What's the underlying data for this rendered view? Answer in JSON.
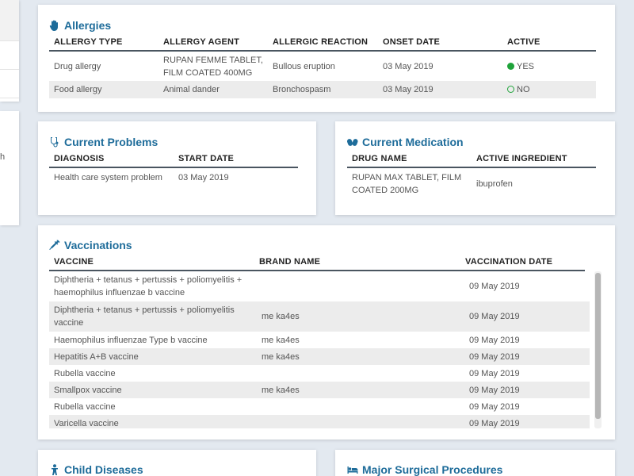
{
  "left_partial": {
    "mid_fragment": "h"
  },
  "allergies": {
    "title": "Allergies",
    "columns": [
      "ALLERGY TYPE",
      "ALLERGY AGENT",
      "ALLERGIC REACTION",
      "ONSET DATE",
      "ACTIVE"
    ],
    "rows": [
      {
        "type": "Drug allergy",
        "agent_line1": "RUPAN FEMME TABLET,",
        "agent_line2": "FILM COATED 400MG",
        "reaction": "Bullous eruption",
        "onset": "03 May 2019",
        "active": "YES"
      },
      {
        "type": "Food allergy",
        "agent_line1": "Animal dander",
        "agent_line2": "",
        "reaction": "Bronchospasm",
        "onset": "03 May 2019",
        "active": "NO"
      }
    ]
  },
  "problems": {
    "title": "Current Problems",
    "columns": [
      "DIAGNOSIS",
      "START DATE"
    ],
    "rows": [
      {
        "diagnosis": "Health care system problem",
        "start": "03 May 2019"
      }
    ]
  },
  "medication": {
    "title": "Current Medication",
    "columns": [
      "DRUG NAME",
      "ACTIVE INGREDIENT"
    ],
    "rows": [
      {
        "drug_line1": "RUPAN MAX TABLET, FILM",
        "drug_line2": "COATED 200MG",
        "ingredient": "ibuprofen"
      }
    ]
  },
  "vaccinations": {
    "title": "Vaccinations",
    "columns": [
      "VACCINE",
      "BRAND NAME",
      "VACCINATION DATE"
    ],
    "rows": [
      {
        "vaccine_line1": "Diphtheria + tetanus + pertussis + poliomyelitis +",
        "vaccine_line2": "haemophilus influenzae b vaccine",
        "brand": "",
        "date": "09 May 2019"
      },
      {
        "vaccine_line1": "Diphtheria + tetanus + pertussis + poliomyelitis",
        "vaccine_line2": "vaccine",
        "brand": "me ka4es",
        "date": "09 May 2019"
      },
      {
        "vaccine_line1": "Haemophilus influenzae Type b vaccine",
        "vaccine_line2": "",
        "brand": "me ka4es",
        "date": "09 May 2019"
      },
      {
        "vaccine_line1": "Hepatitis A+B vaccine",
        "vaccine_line2": "",
        "brand": "me ka4es",
        "date": "09 May 2019"
      },
      {
        "vaccine_line1": "Rubella vaccine",
        "vaccine_line2": "",
        "brand": "",
        "date": "09 May 2019"
      },
      {
        "vaccine_line1": "Smallpox vaccine",
        "vaccine_line2": "",
        "brand": "me ka4es",
        "date": "09 May 2019"
      },
      {
        "vaccine_line1": "Rubella vaccine",
        "vaccine_line2": "",
        "brand": "",
        "date": "09 May 2019"
      },
      {
        "vaccine_line1": "Varicella vaccine",
        "vaccine_line2": "",
        "brand": "",
        "date": "09 May 2019"
      }
    ]
  },
  "child_diseases": {
    "title": "Child Diseases"
  },
  "surgical": {
    "title": "Major Surgical Procedures"
  },
  "colors": {
    "accent": "#1e6c9a",
    "active_green": "#1fa33a",
    "page_bg": "#e3e9f0"
  }
}
